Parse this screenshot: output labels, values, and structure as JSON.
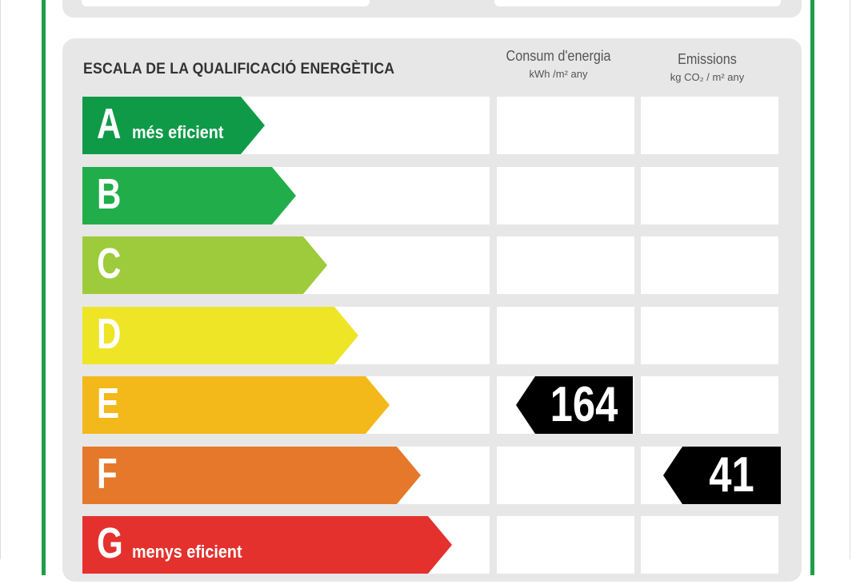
{
  "scale": {
    "title": "ESCALA DE LA QUALIFICACIÓ ENERGÈTICA"
  },
  "columns": {
    "energy": {
      "label": "Consum d'energia",
      "unit": "kWh /m² any"
    },
    "emissions": {
      "label": "Emissions",
      "unit": "kg CO₂ / m² any"
    }
  },
  "ratings": [
    {
      "letter": "A",
      "caption": "més eficient",
      "color": "#0f9a48"
    },
    {
      "letter": "B",
      "caption": "",
      "color": "#22ad4b"
    },
    {
      "letter": "C",
      "caption": "",
      "color": "#9dcb3b"
    },
    {
      "letter": "D",
      "caption": "",
      "color": "#eee527"
    },
    {
      "letter": "E",
      "caption": "",
      "color": "#f3b81a"
    },
    {
      "letter": "F",
      "caption": "",
      "color": "#e5782a"
    },
    {
      "letter": "G",
      "caption": "menys eficient",
      "color": "#e4312d"
    }
  ],
  "energy_rating": {
    "class": "E",
    "value": "164"
  },
  "emissions_rating": {
    "class": "F",
    "value": "41"
  }
}
